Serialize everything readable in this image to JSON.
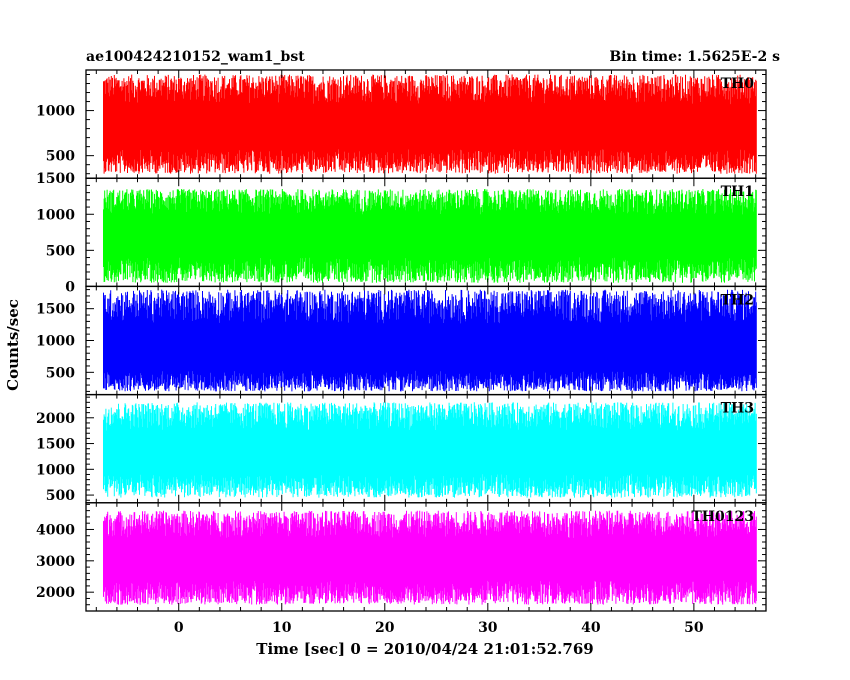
{
  "chart_data": {
    "type": "line",
    "title_left": "ae100424210152_wam1_bst",
    "title_right": "Bin time: 1.5625E-2 s",
    "xlabel": "Time [sec] 0 = 2010/04/24 21:01:52.769",
    "ylabel": "Counts/sec",
    "xlim": [
      -9,
      57
    ],
    "x_data_range": [
      -7.3,
      56.1
    ],
    "x_ticks": [
      0,
      10,
      20,
      30,
      40,
      50
    ],
    "panels": [
      {
        "name": "TH0",
        "color": "#ff0000",
        "ylim": [
          250,
          1450
        ],
        "y_ticks": [
          500,
          1000
        ],
        "typical_range": [
          300,
          1400
        ],
        "mean": 800
      },
      {
        "name": "TH1",
        "color": "#00ff00",
        "ylim": [
          0,
          1500
        ],
        "y_ticks": [
          0,
          500,
          1000,
          1500
        ],
        "typical_range": [
          50,
          1350
        ],
        "mean": 700
      },
      {
        "name": "TH2",
        "color": "#0000ff",
        "ylim": [
          150,
          1850
        ],
        "y_ticks": [
          500,
          1000,
          1500
        ],
        "typical_range": [
          200,
          1800
        ],
        "mean": 800
      },
      {
        "name": "TH3",
        "color": "#00ffff",
        "ylim": [
          350,
          2450
        ],
        "y_ticks": [
          500,
          1000,
          1500,
          2000
        ],
        "typical_range": [
          450,
          2300
        ],
        "mean": 1300
      },
      {
        "name": "TH0123",
        "color": "#ff00ff",
        "ylim": [
          1400,
          4850
        ],
        "y_ticks": [
          2000,
          3000,
          4000
        ],
        "typical_range": [
          1600,
          4600
        ],
        "mean": 3000
      }
    ]
  }
}
